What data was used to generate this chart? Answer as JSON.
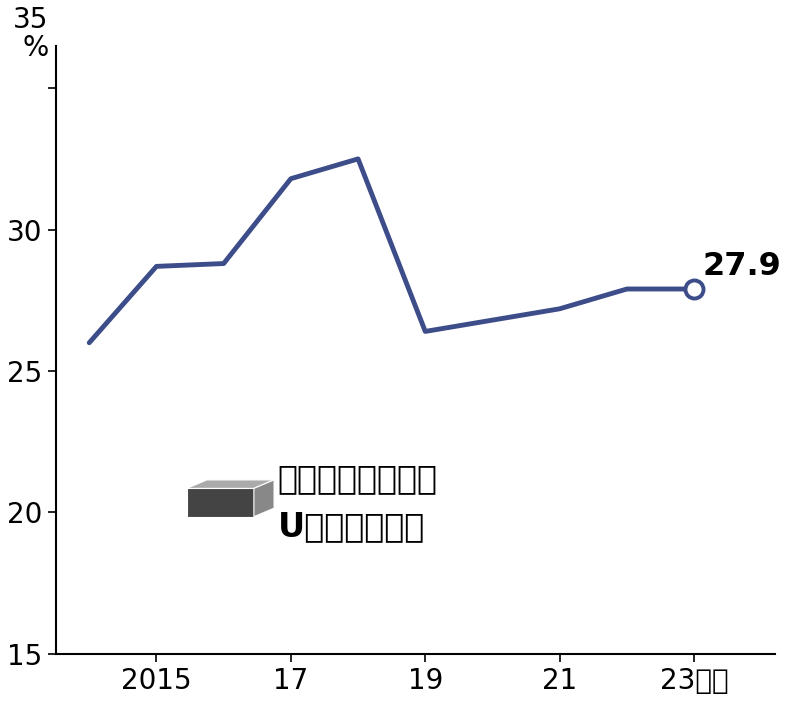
{
  "years": [
    2014,
    2015,
    2016,
    2017,
    2018,
    2019,
    2020,
    2021,
    2022,
    2023
  ],
  "values": [
    26.0,
    28.7,
    28.8,
    31.8,
    32.5,
    26.4,
    26.8,
    27.2,
    27.9,
    27.9
  ],
  "line_color": "#3d4d8a",
  "last_point_label": "27.9",
  "yticks": [
    15,
    20,
    25,
    30,
    35
  ],
  "xticks": [
    2015,
    2017,
    2019,
    2021,
    2023
  ],
  "xtick_labels": [
    "2015",
    "17",
    "19",
    "21",
    "23年度"
  ],
  "ylim": [
    15,
    36.5
  ],
  "xlim": [
    2013.5,
    2024.2
  ],
  "legend_text_line1": "県外大学卒業者の",
  "legend_text_line2": "Uターン就職率",
  "background_color": "#ffffff",
  "line_width": 3.5
}
